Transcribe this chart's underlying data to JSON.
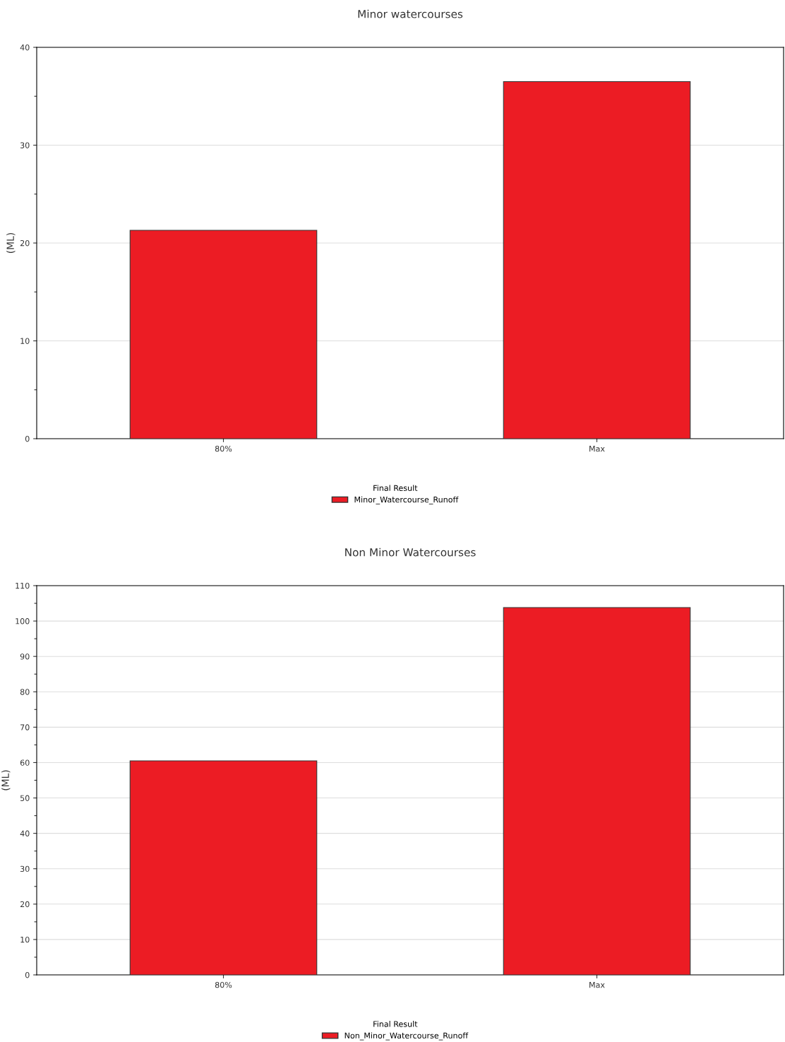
{
  "chart_data": [
    {
      "type": "bar",
      "title": "Minor watercourses",
      "ylabel": "(ML)",
      "legend_title": "Final Result",
      "categories": [
        "80%",
        "Max"
      ],
      "series": [
        {
          "name": "Minor_Watercourse_Runoff",
          "color": "#ec1c24",
          "values": [
            21.3,
            36.5
          ]
        }
      ],
      "ylim": [
        0,
        40
      ],
      "yticks": [
        0,
        {
          "value": 5,
          "label": null
        },
        10,
        {
          "value": 15,
          "label": null
        },
        20,
        {
          "value": 25,
          "label": null
        },
        30,
        {
          "value": 35,
          "label": null
        },
        40
      ],
      "grid": "y",
      "legend": "bottom"
    },
    {
      "type": "bar",
      "title": "Non Minor Watercourses",
      "ylabel": "(ML)",
      "legend_title": "Final Result",
      "categories": [
        "80%",
        "Max"
      ],
      "series": [
        {
          "name": "Non_Minor_Watercourse_Runoff",
          "color": "#ec1c24",
          "values": [
            60.5,
            103.8
          ]
        }
      ],
      "ylim": [
        0,
        110
      ],
      "yticks": [
        0,
        {
          "value": 5,
          "label": null
        },
        10,
        {
          "value": 15,
          "label": null
        },
        20,
        {
          "value": 25,
          "label": null
        },
        30,
        {
          "value": 35,
          "label": null
        },
        40,
        {
          "value": 45,
          "label": null
        },
        50,
        {
          "value": 55,
          "label": null
        },
        60,
        {
          "value": 65,
          "label": null
        },
        70,
        {
          "value": 75,
          "label": null
        },
        80,
        {
          "value": 85,
          "label": null
        },
        90,
        {
          "value": 95,
          "label": null
        },
        100,
        {
          "value": 105,
          "label": null
        },
        110
      ],
      "grid": "y",
      "legend": "bottom"
    }
  ]
}
